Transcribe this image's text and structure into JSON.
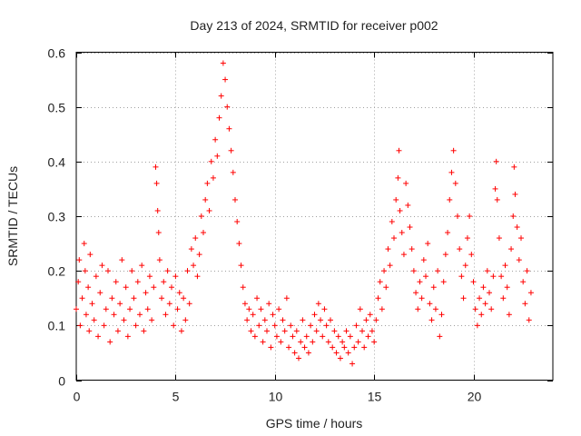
{
  "chart_data": {
    "type": "scatter",
    "title": "Day 213 of 2024, SRMTID for receiver p002",
    "xlabel": "GPS time / hours",
    "ylabel": "SRMTID / TECUs",
    "xlim": [
      0,
      24
    ],
    "ylim": [
      0,
      0.6
    ],
    "x_ticks": [
      0,
      5,
      10,
      15,
      20
    ],
    "x_tick_labels": [
      "0",
      "5",
      "10",
      "15",
      "20"
    ],
    "y_ticks": [
      0,
      0.1,
      0.2,
      0.3,
      0.4,
      0.5,
      0.6
    ],
    "y_tick_labels": [
      "0",
      "0.1",
      "0.2",
      "0.3",
      "0.4",
      "0.5",
      "0.6"
    ],
    "grid": true,
    "marker": "plus",
    "color": "#ff0000",
    "series": [
      {
        "name": "SRMTID",
        "points": [
          [
            0.0,
            0.13
          ],
          [
            0.1,
            0.18
          ],
          [
            0.15,
            0.22
          ],
          [
            0.2,
            0.1
          ],
          [
            0.3,
            0.15
          ],
          [
            0.4,
            0.25
          ],
          [
            0.45,
            0.2
          ],
          [
            0.5,
            0.12
          ],
          [
            0.6,
            0.17
          ],
          [
            0.65,
            0.09
          ],
          [
            0.7,
            0.23
          ],
          [
            0.8,
            0.14
          ],
          [
            0.9,
            0.11
          ],
          [
            1.0,
            0.19
          ],
          [
            1.1,
            0.08
          ],
          [
            1.2,
            0.16
          ],
          [
            1.3,
            0.21
          ],
          [
            1.4,
            0.1
          ],
          [
            1.5,
            0.13
          ],
          [
            1.6,
            0.2
          ],
          [
            1.7,
            0.07
          ],
          [
            1.8,
            0.15
          ],
          [
            1.9,
            0.12
          ],
          [
            2.0,
            0.18
          ],
          [
            2.1,
            0.09
          ],
          [
            2.2,
            0.14
          ],
          [
            2.3,
            0.22
          ],
          [
            2.4,
            0.11
          ],
          [
            2.5,
            0.17
          ],
          [
            2.6,
            0.08
          ],
          [
            2.7,
            0.13
          ],
          [
            2.8,
            0.2
          ],
          [
            2.9,
            0.15
          ],
          [
            3.0,
            0.1
          ],
          [
            3.1,
            0.18
          ],
          [
            3.2,
            0.12
          ],
          [
            3.3,
            0.21
          ],
          [
            3.4,
            0.09
          ],
          [
            3.5,
            0.16
          ],
          [
            3.6,
            0.13
          ],
          [
            3.7,
            0.19
          ],
          [
            3.8,
            0.11
          ],
          [
            3.9,
            0.17
          ],
          [
            4.0,
            0.39
          ],
          [
            4.05,
            0.36
          ],
          [
            4.1,
            0.31
          ],
          [
            4.15,
            0.27
          ],
          [
            4.2,
            0.22
          ],
          [
            4.3,
            0.15
          ],
          [
            4.4,
            0.18
          ],
          [
            4.5,
            0.12
          ],
          [
            4.6,
            0.2
          ],
          [
            4.7,
            0.14
          ],
          [
            4.8,
            0.17
          ],
          [
            4.9,
            0.1
          ],
          [
            5.0,
            0.19
          ],
          [
            5.1,
            0.13
          ],
          [
            5.2,
            0.16
          ],
          [
            5.3,
            0.09
          ],
          [
            5.4,
            0.15
          ],
          [
            5.5,
            0.11
          ],
          [
            5.6,
            0.2
          ],
          [
            5.7,
            0.14
          ],
          [
            5.8,
            0.24
          ],
          [
            5.9,
            0.21
          ],
          [
            6.0,
            0.26
          ],
          [
            6.1,
            0.19
          ],
          [
            6.2,
            0.23
          ],
          [
            6.3,
            0.3
          ],
          [
            6.4,
            0.27
          ],
          [
            6.5,
            0.33
          ],
          [
            6.6,
            0.36
          ],
          [
            6.7,
            0.31
          ],
          [
            6.8,
            0.4
          ],
          [
            6.9,
            0.37
          ],
          [
            7.0,
            0.44
          ],
          [
            7.1,
            0.41
          ],
          [
            7.2,
            0.48
          ],
          [
            7.3,
            0.52
          ],
          [
            7.4,
            0.58
          ],
          [
            7.5,
            0.55
          ],
          [
            7.6,
            0.5
          ],
          [
            7.7,
            0.46
          ],
          [
            7.8,
            0.42
          ],
          [
            7.9,
            0.38
          ],
          [
            8.0,
            0.33
          ],
          [
            8.1,
            0.29
          ],
          [
            8.2,
            0.25
          ],
          [
            8.3,
            0.21
          ],
          [
            8.4,
            0.17
          ],
          [
            8.5,
            0.14
          ],
          [
            8.6,
            0.11
          ],
          [
            8.7,
            0.13
          ],
          [
            8.8,
            0.09
          ],
          [
            8.9,
            0.12
          ],
          [
            9.0,
            0.08
          ],
          [
            9.1,
            0.15
          ],
          [
            9.2,
            0.1
          ],
          [
            9.3,
            0.13
          ],
          [
            9.4,
            0.07
          ],
          [
            9.5,
            0.11
          ],
          [
            9.6,
            0.09
          ],
          [
            9.7,
            0.14
          ],
          [
            9.8,
            0.06
          ],
          [
            9.9,
            0.12
          ],
          [
            10.0,
            0.1
          ],
          [
            10.1,
            0.08
          ],
          [
            10.2,
            0.13
          ],
          [
            10.3,
            0.07
          ],
          [
            10.4,
            0.11
          ],
          [
            10.5,
            0.09
          ],
          [
            10.6,
            0.15
          ],
          [
            10.7,
            0.06
          ],
          [
            10.8,
            0.1
          ],
          [
            10.9,
            0.08
          ],
          [
            11.0,
            0.05
          ],
          [
            11.1,
            0.09
          ],
          [
            11.2,
            0.04
          ],
          [
            11.3,
            0.07
          ],
          [
            11.4,
            0.11
          ],
          [
            11.5,
            0.06
          ],
          [
            11.6,
            0.08
          ],
          [
            11.7,
            0.05
          ],
          [
            11.8,
            0.1
          ],
          [
            11.9,
            0.07
          ],
          [
            12.0,
            0.12
          ],
          [
            12.1,
            0.09
          ],
          [
            12.2,
            0.14
          ],
          [
            12.3,
            0.11
          ],
          [
            12.4,
            0.08
          ],
          [
            12.5,
            0.13
          ],
          [
            12.6,
            0.1
          ],
          [
            12.7,
            0.07
          ],
          [
            12.8,
            0.11
          ],
          [
            12.9,
            0.06
          ],
          [
            13.0,
            0.09
          ],
          [
            13.1,
            0.05
          ],
          [
            13.2,
            0.08
          ],
          [
            13.3,
            0.04
          ],
          [
            13.4,
            0.07
          ],
          [
            13.5,
            0.06
          ],
          [
            13.6,
            0.09
          ],
          [
            13.7,
            0.05
          ],
          [
            13.8,
            0.08
          ],
          [
            13.9,
            0.03
          ],
          [
            14.0,
            0.06
          ],
          [
            14.1,
            0.1
          ],
          [
            14.2,
            0.07
          ],
          [
            14.3,
            0.13
          ],
          [
            14.4,
            0.09
          ],
          [
            14.5,
            0.06
          ],
          [
            14.6,
            0.11
          ],
          [
            14.7,
            0.08
          ],
          [
            14.8,
            0.12
          ],
          [
            14.9,
            0.09
          ],
          [
            15.0,
            0.07
          ],
          [
            15.1,
            0.11
          ],
          [
            15.2,
            0.15
          ],
          [
            15.3,
            0.18
          ],
          [
            15.4,
            0.13
          ],
          [
            15.5,
            0.2
          ],
          [
            15.6,
            0.17
          ],
          [
            15.7,
            0.24
          ],
          [
            15.8,
            0.21
          ],
          [
            15.9,
            0.29
          ],
          [
            16.0,
            0.26
          ],
          [
            16.1,
            0.33
          ],
          [
            16.2,
            0.37
          ],
          [
            16.25,
            0.42
          ],
          [
            16.3,
            0.31
          ],
          [
            16.4,
            0.27
          ],
          [
            16.5,
            0.23
          ],
          [
            16.6,
            0.36
          ],
          [
            16.7,
            0.32
          ],
          [
            16.8,
            0.28
          ],
          [
            16.9,
            0.24
          ],
          [
            17.0,
            0.2
          ],
          [
            17.1,
            0.16
          ],
          [
            17.2,
            0.13
          ],
          [
            17.3,
            0.18
          ],
          [
            17.4,
            0.15
          ],
          [
            17.5,
            0.22
          ],
          [
            17.6,
            0.19
          ],
          [
            17.7,
            0.25
          ],
          [
            17.8,
            0.14
          ],
          [
            17.9,
            0.11
          ],
          [
            18.0,
            0.17
          ],
          [
            18.1,
            0.13
          ],
          [
            18.2,
            0.2
          ],
          [
            18.3,
            0.08
          ],
          [
            18.4,
            0.12
          ],
          [
            18.5,
            0.18
          ],
          [
            18.6,
            0.23
          ],
          [
            18.7,
            0.27
          ],
          [
            18.8,
            0.33
          ],
          [
            18.9,
            0.38
          ],
          [
            19.0,
            0.42
          ],
          [
            19.1,
            0.36
          ],
          [
            19.2,
            0.3
          ],
          [
            19.3,
            0.24
          ],
          [
            19.4,
            0.19
          ],
          [
            19.5,
            0.15
          ],
          [
            19.6,
            0.21
          ],
          [
            19.7,
            0.26
          ],
          [
            19.8,
            0.3
          ],
          [
            19.9,
            0.23
          ],
          [
            20.0,
            0.18
          ],
          [
            20.1,
            0.13
          ],
          [
            20.2,
            0.1
          ],
          [
            20.3,
            0.15
          ],
          [
            20.4,
            0.12
          ],
          [
            20.5,
            0.17
          ],
          [
            20.6,
            0.14
          ],
          [
            20.7,
            0.2
          ],
          [
            20.8,
            0.16
          ],
          [
            20.9,
            0.13
          ],
          [
            21.0,
            0.19
          ],
          [
            21.1,
            0.35
          ],
          [
            21.15,
            0.4
          ],
          [
            21.2,
            0.33
          ],
          [
            21.3,
            0.26
          ],
          [
            21.4,
            0.19
          ],
          [
            21.5,
            0.15
          ],
          [
            21.6,
            0.21
          ],
          [
            21.7,
            0.17
          ],
          [
            21.8,
            0.12
          ],
          [
            21.9,
            0.24
          ],
          [
            22.0,
            0.3
          ],
          [
            22.05,
            0.39
          ],
          [
            22.1,
            0.34
          ],
          [
            22.2,
            0.28
          ],
          [
            22.3,
            0.22
          ],
          [
            22.4,
            0.26
          ],
          [
            22.5,
            0.18
          ],
          [
            22.6,
            0.14
          ],
          [
            22.7,
            0.2
          ],
          [
            22.8,
            0.11
          ],
          [
            22.9,
            0.16
          ]
        ]
      }
    ]
  }
}
